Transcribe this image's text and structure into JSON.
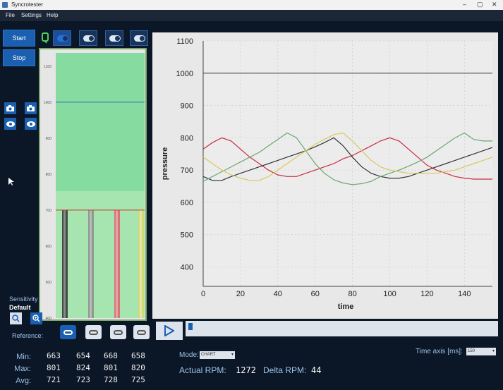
{
  "window": {
    "title": "Syncrotester"
  },
  "menu": [
    "File",
    "Settings",
    "Help"
  ],
  "controls": {
    "start_label": "Start",
    "stop_label": "Stop"
  },
  "sensitivity": {
    "label": "Sensitivity",
    "value": "Default"
  },
  "reference": {
    "label": "Reference:"
  },
  "bar_panel": {
    "y_ticks": [
      "1100",
      "1000",
      "900",
      "800",
      "700",
      "600",
      "500",
      "400"
    ],
    "reference_level": 1000,
    "bars": [
      {
        "level": 700,
        "color": "#333333"
      },
      {
        "level": 700,
        "color": "#8c8c8c"
      },
      {
        "level": 700,
        "color": "#e06070"
      },
      {
        "level": 700,
        "color": "#d8d870"
      }
    ]
  },
  "stats": {
    "labels": {
      "min": "Min:",
      "max": "Max:",
      "avg": "Avg:"
    },
    "min": [
      "663",
      "654",
      "668",
      "658"
    ],
    "max": [
      "801",
      "824",
      "801",
      "820"
    ],
    "avg": [
      "721",
      "723",
      "728",
      "725"
    ]
  },
  "mode": {
    "label": "Mode:",
    "value": "CHART"
  },
  "rpm": {
    "actual_label": "Actual RPM:",
    "actual_value": "1272",
    "delta_label": "Delta RPM:",
    "delta_value": "44"
  },
  "time_axis": {
    "label": "Time axis [ms]:",
    "value": "150"
  },
  "colors": {
    "accent": "#1a5fb0",
    "background": "#0b1626",
    "chart_bg": "#e8e8e8"
  },
  "chart_data": {
    "type": "line",
    "xlabel": "time",
    "ylabel": "pressure",
    "xlim": [
      0,
      155
    ],
    "ylim": [
      340,
      1100
    ],
    "x_ticks": [
      0,
      20,
      40,
      60,
      80,
      100,
      120,
      140
    ],
    "y_ticks": [
      400,
      500,
      600,
      700,
      800,
      900,
      1000,
      1100
    ],
    "reference_line": {
      "y": 1000,
      "color": "#333333"
    },
    "x": [
      0,
      5,
      10,
      15,
      20,
      25,
      30,
      35,
      40,
      45,
      50,
      55,
      60,
      65,
      70,
      75,
      80,
      85,
      90,
      95,
      100,
      105,
      110,
      115,
      120,
      125,
      130,
      135,
      140,
      145,
      150,
      155
    ],
    "series": [
      {
        "color": "#cc2a40",
        "values": [
          765,
          785,
          800,
          790,
          765,
          740,
          720,
          700,
          685,
          680,
          680,
          690,
          700,
          710,
          720,
          735,
          745,
          760,
          775,
          790,
          800,
          790,
          765,
          740,
          715,
          700,
          690,
          680,
          675,
          672,
          672,
          672
        ]
      },
      {
        "color": "#333333",
        "values": [
          680,
          668,
          668,
          680,
          690,
          700,
          710,
          720,
          730,
          740,
          750,
          760,
          772,
          785,
          800,
          775,
          740,
          710,
          690,
          680,
          675,
          675,
          680,
          690,
          700,
          710,
          720,
          730,
          740,
          750,
          760,
          770
        ]
      },
      {
        "color": "#6aa870",
        "values": [
          665,
          680,
          695,
          710,
          725,
          740,
          755,
          775,
          795,
          815,
          800,
          760,
          720,
          690,
          670,
          660,
          655,
          658,
          665,
          680,
          690,
          700,
          712,
          725,
          740,
          760,
          780,
          800,
          815,
          795,
          790,
          790
        ]
      },
      {
        "color": "#d8c860",
        "values": [
          740,
          720,
          700,
          685,
          675,
          668,
          668,
          680,
          700,
          720,
          740,
          760,
          780,
          795,
          810,
          815,
          790,
          760,
          730,
          710,
          700,
          695,
          690,
          690,
          690,
          690,
          695,
          700,
          710,
          720,
          730,
          740
        ]
      }
    ]
  }
}
